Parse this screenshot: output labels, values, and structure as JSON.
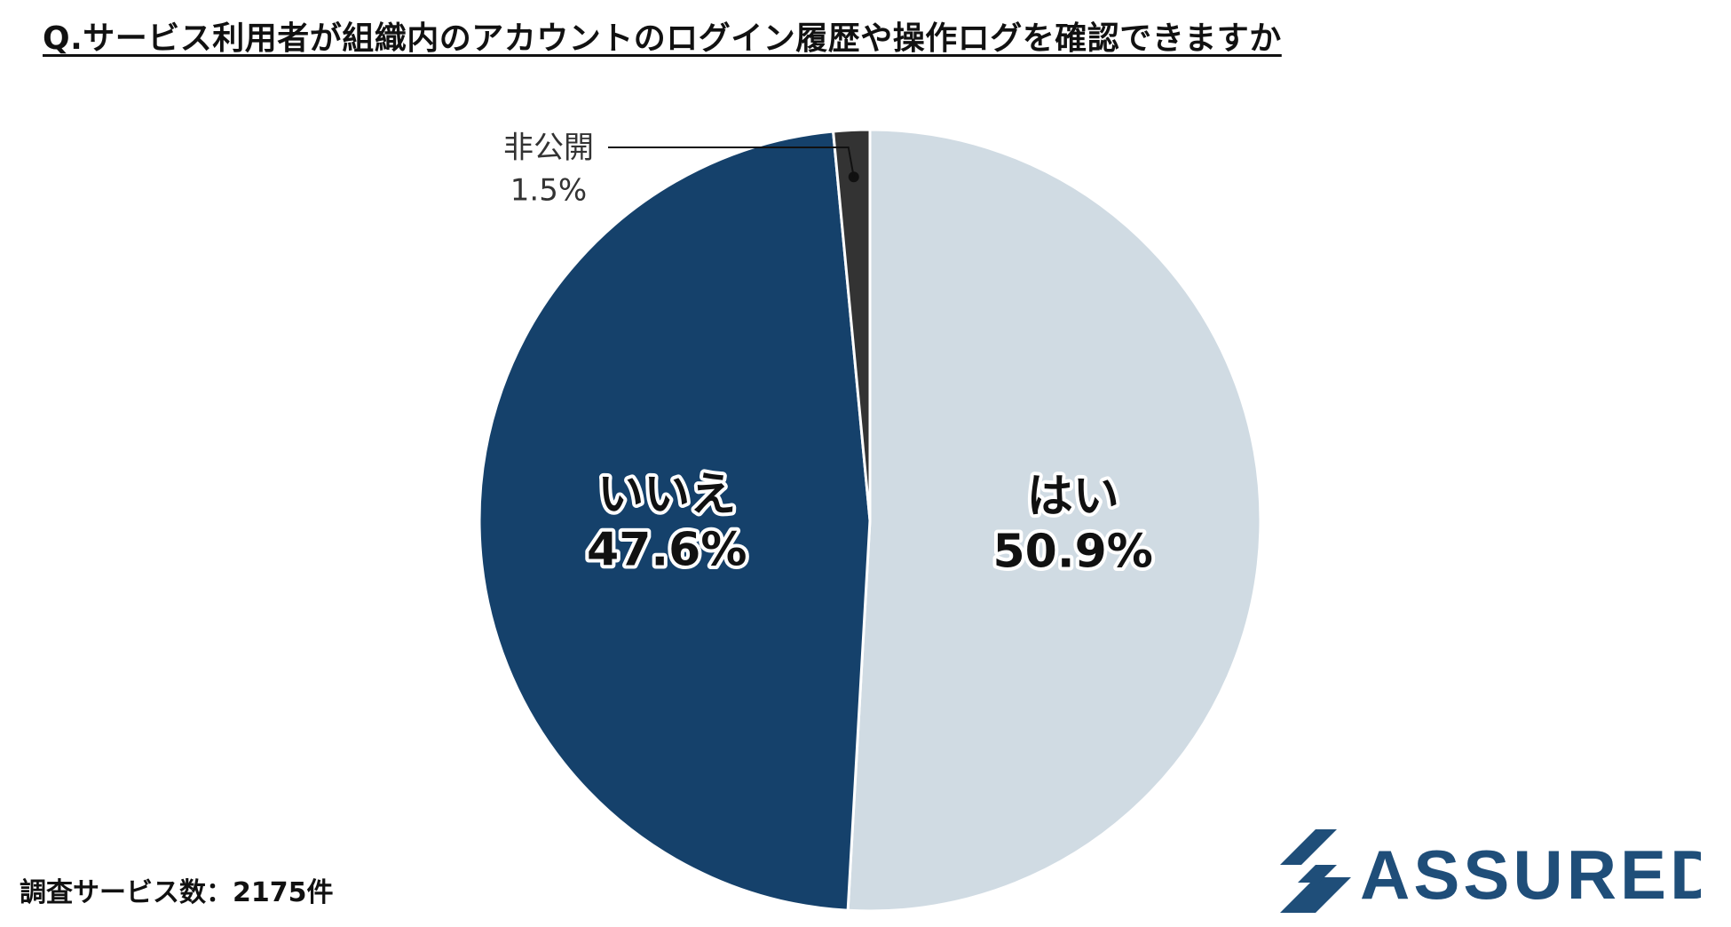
{
  "title": "Q.サービス利用者が組織内のアカウントのログイン履歴や操作ログを確認できますか",
  "chart_data": {
    "type": "pie",
    "slices": [
      {
        "label": "はい",
        "value": 50.9,
        "display": "50.9%",
        "color": "#d0dbe3",
        "text_color": "#111111"
      },
      {
        "label": "いいえ",
        "value": 47.6,
        "display": "47.6%",
        "color": "#15416b",
        "text_color": "#111111"
      },
      {
        "label": "非公開",
        "value": 1.5,
        "display": "1.5%",
        "color": "#333333",
        "text_color": "#333333"
      }
    ],
    "start_angle": "12 o'clock",
    "direction": "clockwise"
  },
  "footnote": "調査サービス数：2175件",
  "logo": {
    "text": "ASSURED",
    "color": "#1f4e79"
  }
}
